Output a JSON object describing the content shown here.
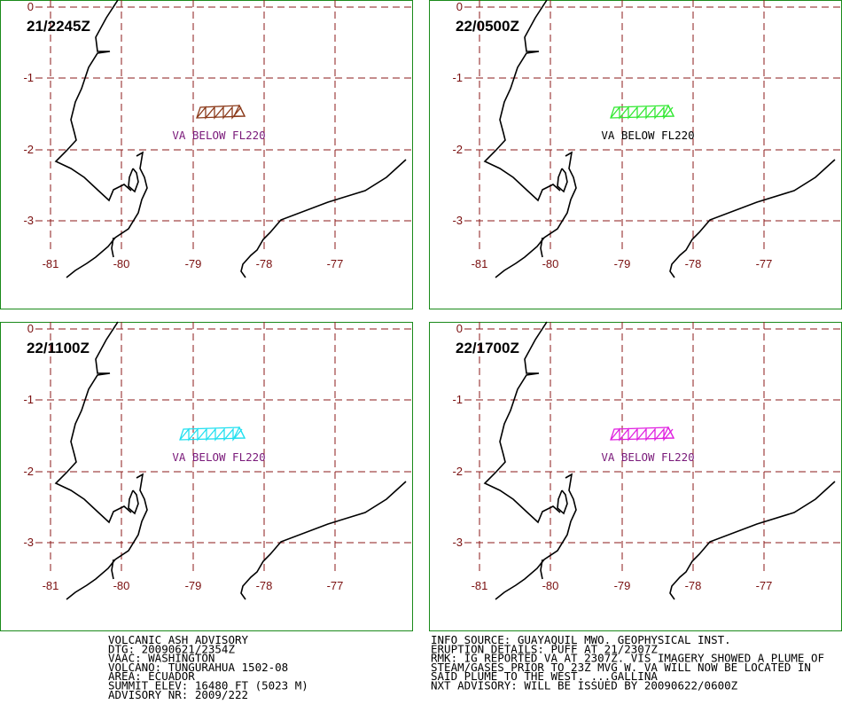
{
  "panels": [
    {
      "time": "21/2245Z",
      "label": "VA BELOW FL220",
      "color": "#8b3a1a",
      "label_color": "#7a1a7a"
    },
    {
      "time": "22/0500Z",
      "label": "VA BELOW FL220",
      "color": "#33e833",
      "label_color": "#000000"
    },
    {
      "time": "22/1100Z",
      "label": "VA BELOW FL220",
      "color": "#22e0f0",
      "label_color": "#7a1a7a"
    },
    {
      "time": "22/1700Z",
      "label": "VA BELOW FL220",
      "color": "#e020e0",
      "label_color": "#7a1a7a"
    }
  ],
  "lat_labels": [
    "0",
    "-1",
    "-2",
    "-3"
  ],
  "lon_labels": [
    "-81",
    "-80",
    "-79",
    "-78",
    "-77"
  ],
  "advisory_left": [
    "VOLCANIC ASH ADVISORY",
    "DTG: 20090621/2354Z",
    "VAAC: WASHINGTON",
    "VOLCANO: TUNGURAHUA 1502-08",
    "AREA: ECUADOR",
    "SUMMIT ELEV: 16480 FT (5023 M)",
    "ADVISORY NR: 2009/222"
  ],
  "advisory_right": [
    "INFO SOURCE: GUAYAQUIL MWO. GEOPHYSICAL INST.",
    "ERUPTION DETAILS: PUFF AT 21/2307Z",
    "RMK: IG REPORTED VA AT 2307Z. VIS IMAGERY SHOWED A PLUME OF",
    "STEAM/GASES PRIOR TO 23Z MVG W. VA WILL NOW BE LOCATED IN",
    "SAID PLUME TO THE WEST. ...GALLINA",
    "NXT ADVISORY: WILL BE ISSUED BY 20090622/0600Z"
  ]
}
